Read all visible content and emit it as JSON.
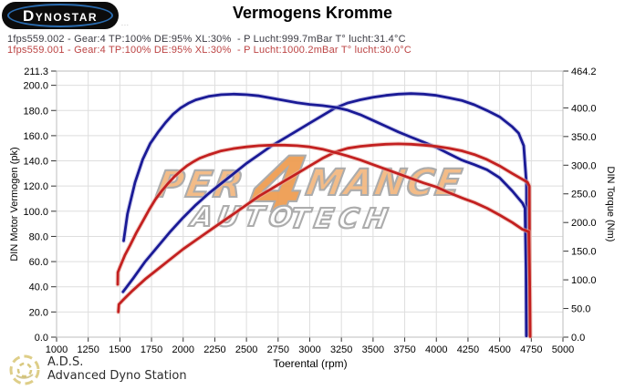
{
  "logo": {
    "text": "DYNOSTAR",
    "fine_print": "..."
  },
  "title": "Vermogens Kromme",
  "runs": [
    {
      "label": "1fps559.002 - Gear:4 TP:100% DE:95% XL:30%  - P Lucht:999.7mBar T° lucht:31.4°C",
      "color": "#3a3a42"
    },
    {
      "label": "1fps559.001 - Gear:4 TP:100% DE:95% XL:30%  - P Lucht:1000.2mBar T° lucht:30.0°C",
      "color": "#bc4343"
    }
  ],
  "watermark": {
    "part1": "PER",
    "part2": "4",
    "part3": "MANCE",
    "part4": "AUTO",
    "part5": "TECH"
  },
  "footer": {
    "abbr": "A.D.S.",
    "name": "Advanced Dyno Station"
  },
  "chart_data": {
    "type": "line",
    "title": "Vermogens Kromme",
    "grid": true,
    "axes": {
      "x": {
        "label": "Toerental (rpm)",
        "min": 1000,
        "max": 5000,
        "ticks": [
          1000,
          1250,
          1500,
          1750,
          2000,
          2250,
          2500,
          2750,
          3000,
          3250,
          3500,
          3750,
          4000,
          4250,
          4500,
          4750,
          5000
        ],
        "tick_labels": [
          "1000",
          "1250",
          "1500",
          "1750",
          "2000",
          "2250",
          "2500",
          "2750",
          "3000",
          "3250",
          "3500",
          "3750",
          "4000",
          "4250",
          "4500",
          "4750",
          "5000"
        ]
      },
      "left": {
        "label": "DIN Motor Vermogen (pk)",
        "min": 0,
        "max": 211.3,
        "ticks": [
          211.3,
          200,
          180,
          160,
          140,
          120,
          100,
          80,
          60,
          40,
          20,
          0
        ],
        "tick_labels": [
          "211.3",
          "200.0",
          "180.0",
          "160.0",
          "140.0",
          "120.0",
          "100.0",
          "80.0",
          "60.0",
          "40.0",
          "20.0",
          "0.0"
        ]
      },
      "right": {
        "label": "DIN Torque (Nm)",
        "min": 0,
        "max": 464.2,
        "ticks": [
          464.2,
          400,
          350,
          300,
          250,
          200,
          150,
          100,
          50,
          0
        ],
        "tick_labels": [
          "464.2",
          "400.0",
          "350.0",
          "300.0",
          "250.0",
          "200.0",
          "150.0",
          "100.0",
          "50.0",
          "0.0"
        ]
      }
    },
    "series": [
      {
        "name": "power-run-002",
        "unit": "pk",
        "axis": "left",
        "color": "#1a1a96",
        "halo": "#b4b4e2",
        "points": [
          [
            1525,
            36
          ],
          [
            1600,
            46
          ],
          [
            1700,
            60
          ],
          [
            1800,
            72
          ],
          [
            1900,
            84
          ],
          [
            2000,
            95
          ],
          [
            2100,
            105
          ],
          [
            2200,
            114
          ],
          [
            2300,
            122
          ],
          [
            2400,
            130
          ],
          [
            2500,
            138
          ],
          [
            2600,
            145
          ],
          [
            2700,
            152
          ],
          [
            2800,
            158
          ],
          [
            2900,
            164
          ],
          [
            3000,
            170
          ],
          [
            3100,
            176
          ],
          [
            3200,
            182
          ],
          [
            3300,
            186
          ],
          [
            3400,
            188.5
          ],
          [
            3500,
            190.5
          ],
          [
            3600,
            192
          ],
          [
            3700,
            193
          ],
          [
            3800,
            193.4
          ],
          [
            3900,
            193
          ],
          [
            4000,
            192
          ],
          [
            4100,
            190
          ],
          [
            4200,
            188
          ],
          [
            4300,
            184.5
          ],
          [
            4400,
            180
          ],
          [
            4500,
            175
          ],
          [
            4600,
            167
          ],
          [
            4650,
            162
          ],
          [
            4690,
            152
          ],
          [
            4705,
            131
          ],
          [
            4712,
            122
          ],
          [
            4714,
            40
          ],
          [
            4715,
            2
          ]
        ]
      },
      {
        "name": "torque-run-002",
        "unit": "Nm",
        "axis": "right",
        "color": "#1a1a96",
        "halo": "#b4b4e2",
        "points": [
          [
            1530,
            168
          ],
          [
            1560,
            215
          ],
          [
            1620,
            270
          ],
          [
            1680,
            310
          ],
          [
            1740,
            338
          ],
          [
            1800,
            357
          ],
          [
            1860,
            374
          ],
          [
            1920,
            389
          ],
          [
            1980,
            400
          ],
          [
            2040,
            408
          ],
          [
            2100,
            414
          ],
          [
            2200,
            420
          ],
          [
            2300,
            423
          ],
          [
            2400,
            424
          ],
          [
            2500,
            423
          ],
          [
            2600,
            421
          ],
          [
            2700,
            417
          ],
          [
            2800,
            413
          ],
          [
            2900,
            409
          ],
          [
            3000,
            406
          ],
          [
            3100,
            404
          ],
          [
            3200,
            401
          ],
          [
            3300,
            396
          ],
          [
            3400,
            388
          ],
          [
            3500,
            378
          ],
          [
            3600,
            368
          ],
          [
            3700,
            358
          ],
          [
            3800,
            349
          ],
          [
            3900,
            340
          ],
          [
            4000,
            331
          ],
          [
            4100,
            320
          ],
          [
            4200,
            309
          ],
          [
            4300,
            301
          ],
          [
            4400,
            292
          ],
          [
            4500,
            278
          ],
          [
            4600,
            255
          ],
          [
            4680,
            234
          ],
          [
            4700,
            225
          ],
          [
            4708,
            120
          ],
          [
            4711,
            2
          ]
        ]
      },
      {
        "name": "power-run-001",
        "unit": "pk",
        "axis": "left",
        "color": "#c32020",
        "halo": "#e9b0a6",
        "points": [
          [
            1488,
            20
          ],
          [
            1492,
            26
          ],
          [
            1520,
            29
          ],
          [
            1560,
            33
          ],
          [
            1600,
            37
          ],
          [
            1700,
            46
          ],
          [
            1800,
            54
          ],
          [
            1900,
            62
          ],
          [
            2000,
            70
          ],
          [
            2100,
            77
          ],
          [
            2200,
            84
          ],
          [
            2300,
            91
          ],
          [
            2400,
            98
          ],
          [
            2500,
            105
          ],
          [
            2600,
            112
          ],
          [
            2700,
            118
          ],
          [
            2800,
            124
          ],
          [
            2900,
            130
          ],
          [
            3000,
            136
          ],
          [
            3100,
            142
          ],
          [
            3200,
            147
          ],
          [
            3300,
            150
          ],
          [
            3400,
            151.5
          ],
          [
            3500,
            152.5
          ],
          [
            3600,
            153.2
          ],
          [
            3700,
            153.5
          ],
          [
            3800,
            153.2
          ],
          [
            3900,
            152.5
          ],
          [
            4000,
            151.5
          ],
          [
            4100,
            150
          ],
          [
            4200,
            148
          ],
          [
            4300,
            145
          ],
          [
            4400,
            141
          ],
          [
            4500,
            136
          ],
          [
            4600,
            130
          ],
          [
            4660,
            126.5
          ],
          [
            4720,
            123
          ],
          [
            4735,
            120
          ],
          [
            4738,
            40
          ],
          [
            4740,
            1
          ]
        ]
      },
      {
        "name": "torque-run-001",
        "unit": "Nm",
        "axis": "right",
        "color": "#c32020",
        "halo": "#e9b0a6",
        "points": [
          [
            1483,
            92
          ],
          [
            1484,
            113
          ],
          [
            1500,
            122
          ],
          [
            1540,
            143
          ],
          [
            1580,
            160
          ],
          [
            1630,
            182
          ],
          [
            1680,
            202
          ],
          [
            1730,
            222
          ],
          [
            1780,
            240
          ],
          [
            1830,
            255
          ],
          [
            1880,
            268
          ],
          [
            1930,
            280
          ],
          [
            1980,
            290
          ],
          [
            2030,
            299
          ],
          [
            2080,
            306
          ],
          [
            2130,
            312
          ],
          [
            2200,
            318
          ],
          [
            2300,
            325
          ],
          [
            2400,
            329
          ],
          [
            2500,
            332
          ],
          [
            2600,
            334
          ],
          [
            2700,
            335
          ],
          [
            2800,
            335
          ],
          [
            2900,
            334
          ],
          [
            3000,
            332
          ],
          [
            3100,
            328
          ],
          [
            3200,
            322
          ],
          [
            3300,
            316
          ],
          [
            3400,
            309
          ],
          [
            3500,
            301
          ],
          [
            3600,
            293
          ],
          [
            3700,
            285
          ],
          [
            3800,
            277
          ],
          [
            3900,
            269
          ],
          [
            4000,
            262
          ],
          [
            4100,
            252
          ],
          [
            4200,
            243
          ],
          [
            4300,
            235
          ],
          [
            4400,
            225
          ],
          [
            4500,
            213
          ],
          [
            4600,
            200
          ],
          [
            4680,
            188
          ],
          [
            4730,
            184
          ],
          [
            4738,
            90
          ],
          [
            4741,
            1
          ]
        ]
      }
    ]
  }
}
